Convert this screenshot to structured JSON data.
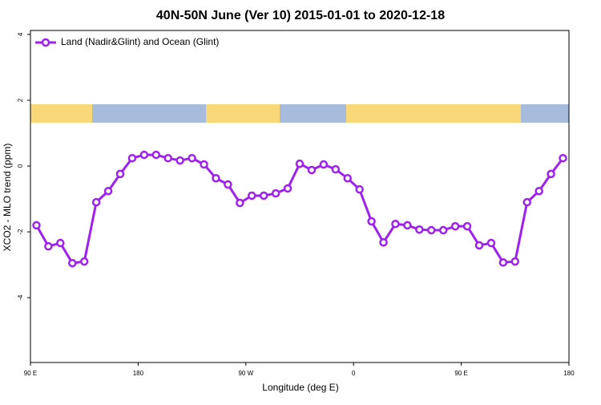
{
  "chart_data": {
    "type": "line",
    "title": "40N-50N June (Ver 10)   2015-01-01 to 2020-12-18",
    "xlabel": "Longitude (deg E)",
    "ylabel": "XCO2 - MLO trend (ppm)",
    "x": [
      95,
      105,
      115,
      125,
      135,
      145,
      155,
      165,
      175,
      185,
      195,
      205,
      215,
      225,
      235,
      245,
      255,
      265,
      275,
      285,
      295,
      305,
      315,
      325,
      335,
      345,
      355,
      365,
      375,
      385,
      395,
      405,
      415,
      425,
      435,
      445,
      455,
      465,
      475,
      485,
      495,
      505,
      515,
      525,
      535
    ],
    "series": [
      {
        "name": "Land (Nadir&Glint) and Ocean (Glint)",
        "color": "#a020f0",
        "values": [
          -1.8,
          -2.44,
          -2.34,
          -2.95,
          -2.9,
          -1.1,
          -0.76,
          -0.24,
          0.24,
          0.34,
          0.34,
          0.24,
          0.17,
          0.24,
          0.05,
          -0.37,
          -0.56,
          -1.12,
          -0.9,
          -0.9,
          -0.83,
          -0.68,
          0.07,
          -0.12,
          0.05,
          -0.1,
          -0.37,
          -0.71,
          -1.68,
          -2.32,
          -1.76,
          -1.8,
          -1.93,
          -1.95,
          -1.95,
          -1.83,
          -1.83,
          -2.41,
          -2.34,
          -2.93,
          -2.9,
          -1.1,
          -0.76,
          -0.24,
          0.24
        ]
      }
    ],
    "xlim": [
      90,
      540
    ],
    "xticks": [
      {
        "value": 90,
        "label": "90 E"
      },
      {
        "value": 180,
        "label": "180"
      },
      {
        "value": 270,
        "label": "90 W"
      },
      {
        "value": 360,
        "label": "0"
      },
      {
        "value": 450,
        "label": "90 E"
      },
      {
        "value": 540,
        "label": "180"
      }
    ],
    "ylim": [
      -5.97,
      4.12
    ],
    "yticks": [
      -4,
      -2,
      0,
      2,
      4
    ],
    "legend": "top-left"
  }
}
